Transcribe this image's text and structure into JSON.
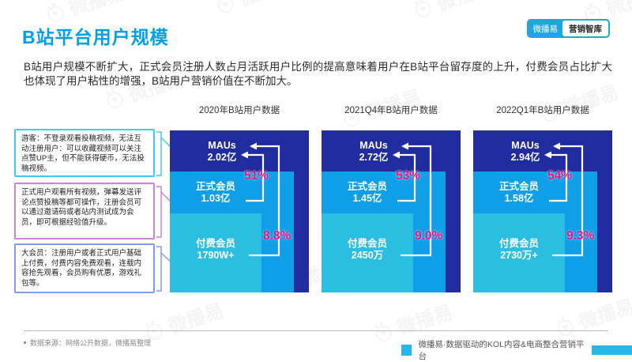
{
  "page_title": "B站平台用户规模",
  "brand": {
    "badge_left": "微播易",
    "badge_right": "营销智库",
    "watermark_text": "微播易",
    "accent_blue": "#00a0e9",
    "deep_blue": "#202c9f",
    "mid_blue": "#0f9fe8",
    "light_cyan": "#2bbee0",
    "magenta": "#e81380"
  },
  "intro": "B站用户规模不断扩大，正式会员注册人数占月活跃用户比例的提高意味着用户在B站平台留存度的上升，付费会员占比扩大也体现了用户粘性的增强，B站用户营销价值在不断加大。",
  "labels": {
    "maus": "MAUs",
    "formal": "正式会员",
    "paid": "付费会员"
  },
  "notes": [
    {
      "text": "游客：不登录观看投稿视频，无法互动注册用户：可以收藏视频可以关注点赞UP主，但不能获得硬币，无法投稿视频。"
    },
    {
      "text": "正式用户观看所有视频，弹幕发送评论点赞投稿等都可操作，注册会员可以通过邀请码或者站内测试成为会员，即可根据经验值升级。"
    },
    {
      "text": "大会员：注册用户或者正式用户基础上付费，付费内容免费观看，连载内容抢先观看，会员购有优惠，游戏礼包等。"
    }
  ],
  "chart_data": {
    "type": "bar",
    "subtype": "nested-rectangles",
    "title": "B站平台用户规模",
    "categories": [
      "2020年B站用户数据",
      "2021Q4年B站用户数据",
      "2022Q1年B站用户数据"
    ],
    "series": [
      {
        "name": "MAUs(亿)",
        "values": [
          2.02,
          2.72,
          2.94
        ]
      },
      {
        "name": "正式会员(亿)",
        "values": [
          1.03,
          1.45,
          1.58
        ]
      },
      {
        "name": "付费会员(万)",
        "values": [
          1790,
          2450,
          2730
        ]
      },
      {
        "name": "正式会员占MAUs比例(%)",
        "values": [
          51,
          53,
          54
        ]
      },
      {
        "name": "付费会员占MAUs比例(%)",
        "values": [
          8.8,
          9.0,
          9.3
        ]
      }
    ],
    "groups": [
      {
        "period": "2020年B站用户数据",
        "maus": "2.02亿",
        "formal": "1.03亿",
        "paid": "1790W+",
        "formal_ratio": "51%",
        "paid_ratio": "8.8%"
      },
      {
        "period": "2021Q4年B站用户数据",
        "maus": "2.72亿",
        "formal": "1.45亿",
        "paid": "2450万",
        "formal_ratio": "53%",
        "paid_ratio": "9.0%"
      },
      {
        "period": "2022Q1年B站用户数据",
        "maus": "2.94亿",
        "formal": "1.58亿",
        "paid": "2730万+",
        "formal_ratio": "54%",
        "paid_ratio": "9.3%"
      }
    ],
    "legend_position": "none",
    "grid": false
  },
  "footer": {
    "source": "数据来源：网络公开数据，微播易整理",
    "slogan": "微播易·数据驱动的KOL内容&电商整合营销平台"
  }
}
